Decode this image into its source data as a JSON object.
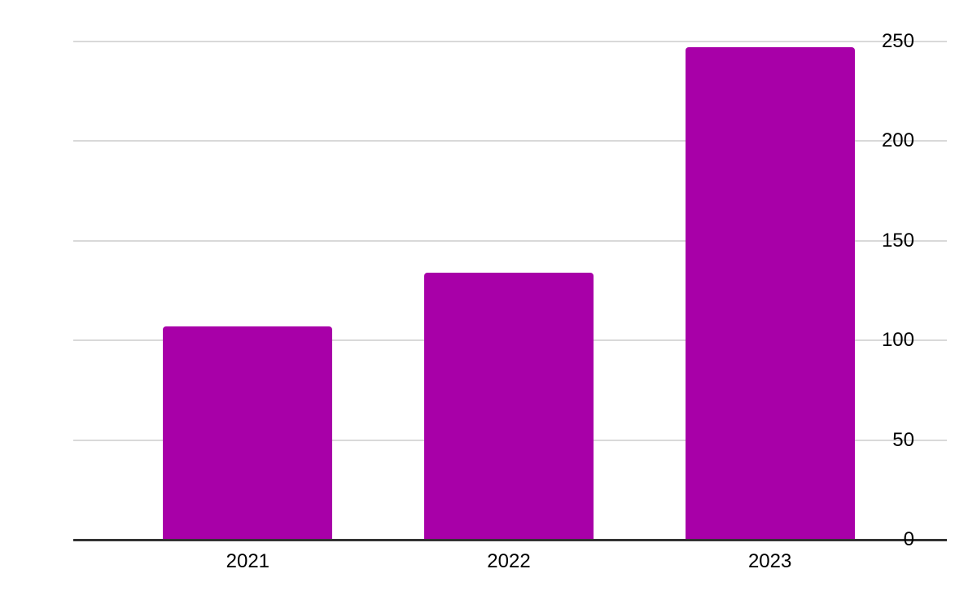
{
  "chart_data": {
    "type": "bar",
    "categories": [
      "2021",
      "2022",
      "2023"
    ],
    "values": [
      107,
      134,
      247
    ],
    "yticks": [
      0,
      50,
      100,
      150,
      200,
      250
    ],
    "ylim": [
      0,
      250
    ],
    "grid": true,
    "legend_position": "none",
    "colors": {
      "bar": "#a800a8",
      "gridline": "#d9d9d9",
      "axis_line": "#333333",
      "tick_label": "#000000",
      "background": "#ffffff"
    }
  }
}
